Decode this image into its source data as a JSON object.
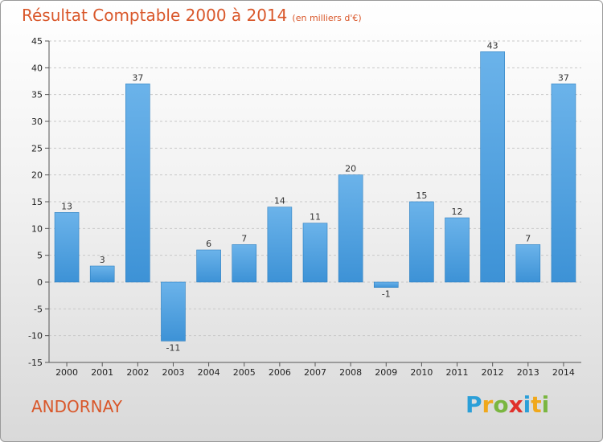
{
  "title": "Résultat Comptable 2000 à 2014",
  "subtitle": "(en milliers d'€)",
  "commune": "ANDORNAY",
  "logo": {
    "letters": [
      "P",
      "r",
      "o",
      "x",
      "i",
      "t",
      "i"
    ],
    "colors": [
      "#2b9fd8",
      "#f0a81c",
      "#7ab640",
      "#e0302a",
      "#2b9fd8",
      "#f0a81c",
      "#7ab640"
    ]
  },
  "colors": {
    "bar": "#3d92d6",
    "bar_light": "#6bb3ea",
    "title": "#d9572a"
  },
  "chart_data": {
    "type": "bar",
    "categories": [
      "2000",
      "2001",
      "2002",
      "2003",
      "2004",
      "2005",
      "2006",
      "2007",
      "2008",
      "2009",
      "2010",
      "2011",
      "2012",
      "2013",
      "2014"
    ],
    "values": [
      13,
      3,
      37,
      -11,
      6,
      7,
      14,
      11,
      20,
      -1,
      15,
      12,
      43,
      7,
      37
    ],
    "value_labels": [
      "13",
      "3",
      "37",
      "-11",
      "6",
      "7",
      "14",
      "11",
      "20",
      "-1",
      "15",
      "12",
      "43",
      "7",
      "37"
    ],
    "title": "Résultat Comptable 2000 à 2014",
    "ylim": [
      -15,
      45
    ],
    "yticks": [
      -15,
      -10,
      -5,
      0,
      5,
      10,
      15,
      20,
      25,
      30,
      35,
      40,
      45
    ],
    "grid": true,
    "legend": "none"
  }
}
